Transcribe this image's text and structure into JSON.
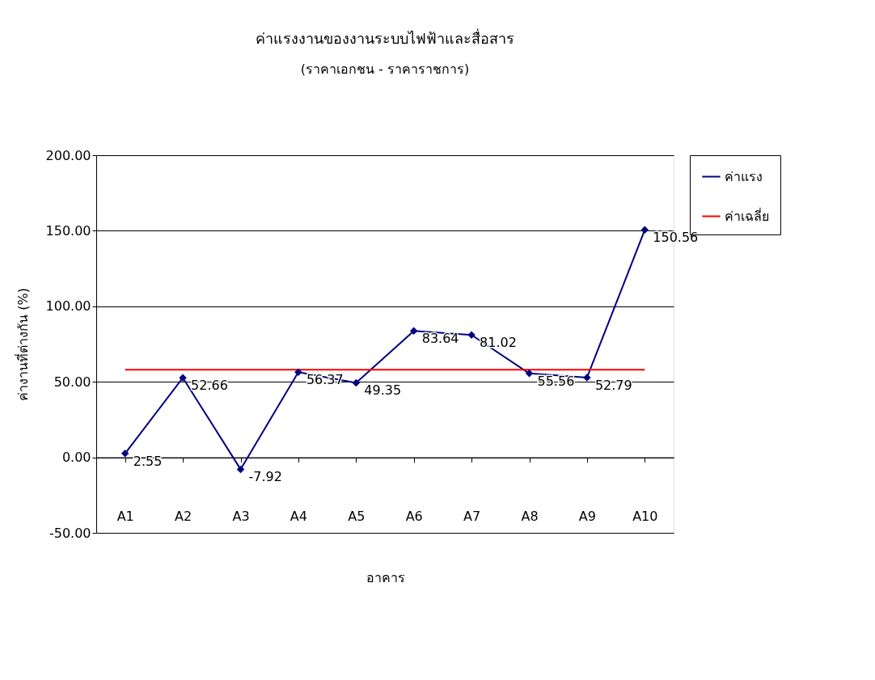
{
  "chart_data": {
    "type": "line",
    "title": "ค่าแรงงานของงานระบบไฟฟ้าและสื่อสาร",
    "subtitle": "(ราคาเอกชน - ราคาราชการ)",
    "xlabel": "อาคาร",
    "ylabel": "ค่างานที่ต่างกัน (%)",
    "categories": [
      "A1",
      "A2",
      "A3",
      "A4",
      "A5",
      "A6",
      "A7",
      "A8",
      "A9",
      "A10"
    ],
    "series": [
      {
        "name": "ค่าแรง",
        "color": "#000080",
        "marker": "diamond",
        "data_labels": true,
        "values": [
          2.55,
          52.66,
          -7.92,
          56.37,
          49.35,
          83.64,
          81.02,
          55.56,
          52.79,
          150.56
        ]
      },
      {
        "name": "ค่าเฉลี่ย",
        "color": "#ff0000",
        "marker": "none",
        "values": [
          58,
          58,
          58,
          58,
          58,
          58,
          58,
          58,
          58,
          58
        ]
      }
    ],
    "ylim": [
      -50,
      200
    ],
    "yticks": [
      {
        "value": -50,
        "label": "-50.00"
      },
      {
        "value": 0,
        "label": "0.00"
      },
      {
        "value": 50,
        "label": "50.00"
      },
      {
        "value": 100,
        "label": "100.00"
      },
      {
        "value": 150,
        "label": "150.00"
      },
      {
        "value": 200,
        "label": "200.00"
      }
    ],
    "grid": "y",
    "legend": "right",
    "line_style": "solid"
  }
}
